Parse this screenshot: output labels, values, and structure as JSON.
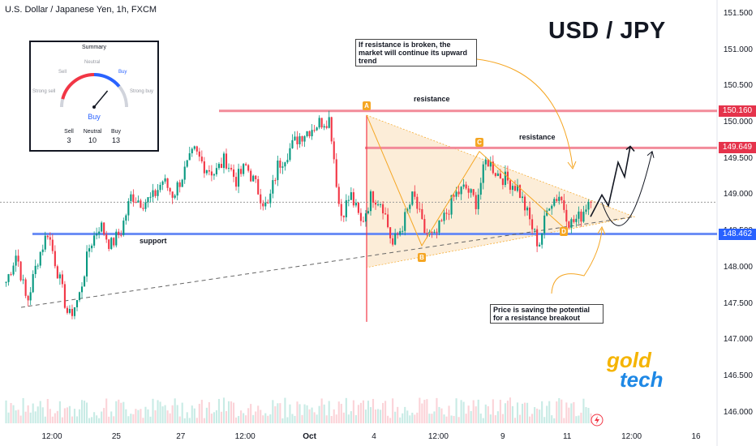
{
  "symbol_title": "U.S. Dollar / Japanese Yen, 1h, FXCM",
  "headline": "USD / JPY",
  "colors": {
    "up": "#089981",
    "down": "#f23645",
    "resistance": "#f28b9a",
    "support": "#6c8ef5",
    "accent": "#f5a623",
    "triangle_fill": "#fbe6c8"
  },
  "chart_data": {
    "type": "candlestick",
    "title": "USD / JPY",
    "ylim": [
      145.85,
      151.6
    ],
    "y_ticks": [
      "151.500",
      "151.000",
      "150.500",
      "150.000",
      "149.500",
      "149.000",
      "148.500",
      "148.000",
      "147.500",
      "147.000",
      "146.500",
      "146.000"
    ],
    "x_ticks": [
      {
        "label": "12:00",
        "bold": false
      },
      {
        "label": "25",
        "bold": false
      },
      {
        "label": "27",
        "bold": false
      },
      {
        "label": "12:00",
        "bold": false
      },
      {
        "label": "Oct",
        "bold": true
      },
      {
        "label": "4",
        "bold": false
      },
      {
        "label": "12:00",
        "bold": false
      },
      {
        "label": "9",
        "bold": false
      },
      {
        "label": "11",
        "bold": false
      },
      {
        "label": "12:00",
        "bold": false
      },
      {
        "label": "16",
        "bold": false
      }
    ],
    "levels": [
      {
        "name": "resistance",
        "value": 150.16,
        "label": "150.160"
      },
      {
        "name": "resistance",
        "value": 149.649,
        "label": "149.649"
      },
      {
        "name": "support",
        "value": 148.462,
        "label": "148.462"
      }
    ],
    "current_price_line": 148.9,
    "pattern_points": [
      {
        "label": "A",
        "price": 150.1
      },
      {
        "label": "B",
        "price": 148.3
      },
      {
        "label": "C",
        "price": 149.6
      },
      {
        "label": "D",
        "price": 148.55
      }
    ],
    "price_path": [
      147.8,
      148.2,
      147.5,
      148.1,
      148.5,
      147.9,
      147.3,
      147.6,
      148.3,
      148.6,
      148.3,
      148.5,
      149.0,
      148.9,
      148.95,
      149.2,
      149.0,
      149.3,
      149.6,
      149.4,
      149.3,
      149.5,
      149.2,
      149.4,
      149.1,
      148.8,
      149.4,
      149.6,
      149.8,
      149.9,
      150.0,
      150.05,
      148.7,
      149.0,
      148.6,
      149.0,
      148.9,
      148.3,
      148.6,
      149.0,
      148.5,
      148.4,
      148.7,
      149.0,
      149.1,
      148.9,
      149.5,
      149.3,
      149.2,
      149.1,
      148.7,
      148.3,
      148.9,
      149.0,
      148.6,
      148.7,
      149.0
    ]
  },
  "annotations": {
    "note_top": "If resistance is broken, the market will continue its upward trend",
    "note_bottom": "Price is saving the potential for a resistance breakout",
    "resistance_label_1": "resistance",
    "resistance_label_2": "resistance",
    "support_label": "support"
  },
  "summary": {
    "title": "Summary",
    "gauge_labels": {
      "strong_sell": "Strong sell",
      "sell": "Sell",
      "neutral": "Neutral",
      "buy": "Buy",
      "strong_buy": "Strong buy"
    },
    "gauge_value": 0.72,
    "result": "Buy",
    "counts": [
      {
        "label": "Sell",
        "value": "3"
      },
      {
        "label": "Neutral",
        "value": "10"
      },
      {
        "label": "Buy",
        "value": "13"
      }
    ]
  },
  "logo": {
    "line1": "gold",
    "line2": "tech"
  }
}
